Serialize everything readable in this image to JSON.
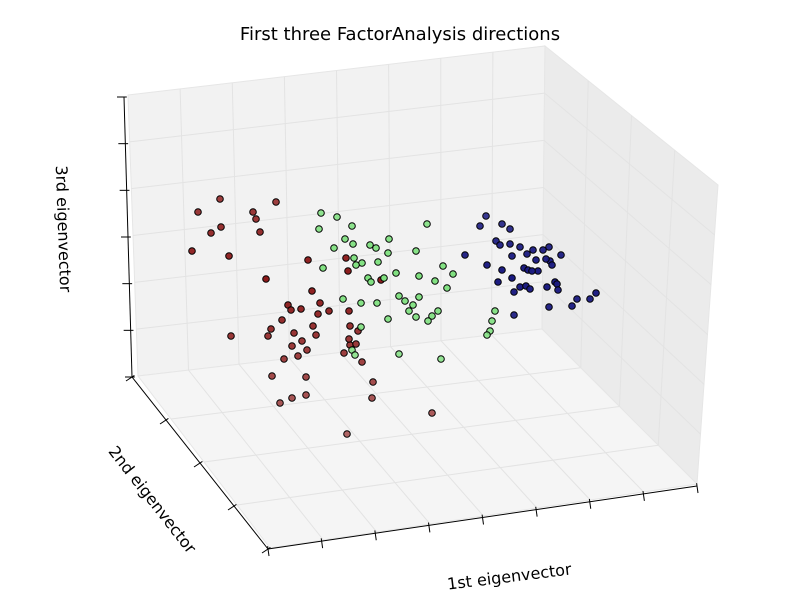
{
  "chart_data": {
    "type": "scatter",
    "projection": "3d",
    "title": "First three FactorAnalysis directions",
    "xlabel": "1st eigenvector",
    "ylabel": "2nd eigenvector",
    "zlabel": "3rd eigenvector",
    "tick_labels": "hidden",
    "grid": true,
    "legend": "none",
    "series": [
      {
        "color": "#8b1a1a",
        "points": [
          [
            220,
            199
          ],
          [
            198,
            212
          ],
          [
            253,
            212
          ],
          [
            276,
            202
          ],
          [
            256,
            219
          ],
          [
            211,
            233
          ],
          [
            221,
            227
          ],
          [
            260,
            232
          ],
          [
            192,
            251
          ],
          [
            229,
            256
          ],
          [
            266,
            279
          ],
          [
            308,
            260
          ],
          [
            312,
            291
          ],
          [
            288,
            305
          ],
          [
            320,
            303
          ],
          [
            282,
            320
          ],
          [
            291,
            310
          ],
          [
            301,
            309
          ],
          [
            318,
            314
          ],
          [
            329,
            311
          ],
          [
            271,
            329
          ],
          [
            231,
            336
          ],
          [
            268,
            336
          ],
          [
            294,
            333
          ],
          [
            313,
            326
          ],
          [
            316,
            335
          ],
          [
            302,
            341
          ],
          [
            292,
            346
          ],
          [
            307,
            350
          ],
          [
            284,
            359
          ],
          [
            298,
            356
          ],
          [
            349,
            311
          ],
          [
            350,
            326
          ],
          [
            358,
            331
          ],
          [
            350,
            345
          ],
          [
            356,
            344
          ],
          [
            344,
            353
          ],
          [
            349,
            339
          ],
          [
            373,
            382
          ],
          [
            362,
            362
          ],
          [
            272,
            376
          ],
          [
            306,
            377
          ],
          [
            280,
            403
          ],
          [
            292,
            398
          ],
          [
            306,
            395
          ],
          [
            372,
            398
          ],
          [
            432,
            413
          ],
          [
            347,
            434
          ],
          [
            346,
            258
          ],
          [
            348,
            271
          ],
          [
            381,
            280
          ]
        ]
      },
      {
        "color": "#7fe07f",
        "points": [
          [
            321,
            213
          ],
          [
            337,
            217
          ],
          [
            352,
            226
          ],
          [
            319,
            229
          ],
          [
            345,
            239
          ],
          [
            353,
            244
          ],
          [
            334,
            248
          ],
          [
            370,
            245
          ],
          [
            389,
            239
          ],
          [
            376,
            248
          ],
          [
            427,
            224
          ],
          [
            323,
            268
          ],
          [
            354,
            258
          ],
          [
            362,
            263
          ],
          [
            356,
            265
          ],
          [
            378,
            262
          ],
          [
            388,
            253
          ],
          [
            416,
            251
          ],
          [
            443,
            266
          ],
          [
            368,
            278
          ],
          [
            371,
            282
          ],
          [
            384,
            278
          ],
          [
            396,
            273
          ],
          [
            419,
            276
          ],
          [
            453,
            274
          ],
          [
            435,
            281
          ],
          [
            447,
            288
          ],
          [
            343,
            299
          ],
          [
            361,
            303
          ],
          [
            377,
            303
          ],
          [
            399,
            296
          ],
          [
            405,
            301
          ],
          [
            413,
            305
          ],
          [
            419,
            297
          ],
          [
            409,
            311
          ],
          [
            416,
            317
          ],
          [
            438,
            311
          ],
          [
            432,
            316
          ],
          [
            428,
            321
          ],
          [
            388,
            319
          ],
          [
            361,
            327
          ],
          [
            352,
            350
          ],
          [
            355,
            355
          ],
          [
            399,
            354
          ],
          [
            441,
            359
          ],
          [
            490,
            331
          ],
          [
            492,
            321
          ],
          [
            495,
            311
          ],
          [
            487,
            335
          ]
        ]
      },
      {
        "color": "#1a1a80",
        "points": [
          [
            486,
            216
          ],
          [
            480,
            226
          ],
          [
            502,
            224
          ],
          [
            510,
            229
          ],
          [
            496,
            241
          ],
          [
            500,
            245
          ],
          [
            510,
            244
          ],
          [
            520,
            247
          ],
          [
            527,
            254
          ],
          [
            549,
            247
          ],
          [
            543,
            250
          ],
          [
            465,
            255
          ],
          [
            487,
            265
          ],
          [
            502,
            270
          ],
          [
            512,
            256
          ],
          [
            533,
            250
          ],
          [
            550,
            261
          ],
          [
            561,
            255
          ],
          [
            536,
            260
          ],
          [
            538,
            271
          ],
          [
            524,
            268
          ],
          [
            528,
            270
          ],
          [
            532,
            271
          ],
          [
            546,
            259
          ],
          [
            498,
            282
          ],
          [
            512,
            278
          ],
          [
            520,
            287
          ],
          [
            526,
            286
          ],
          [
            530,
            289
          ],
          [
            514,
            292
          ],
          [
            555,
            282
          ],
          [
            547,
            287
          ],
          [
            552,
            265
          ],
          [
            557,
            284
          ],
          [
            558,
            290
          ],
          [
            577,
            299
          ],
          [
            596,
            293
          ],
          [
            590,
            299
          ],
          [
            572,
            306
          ],
          [
            549,
            307
          ],
          [
            514,
            315
          ]
        ]
      }
    ]
  }
}
